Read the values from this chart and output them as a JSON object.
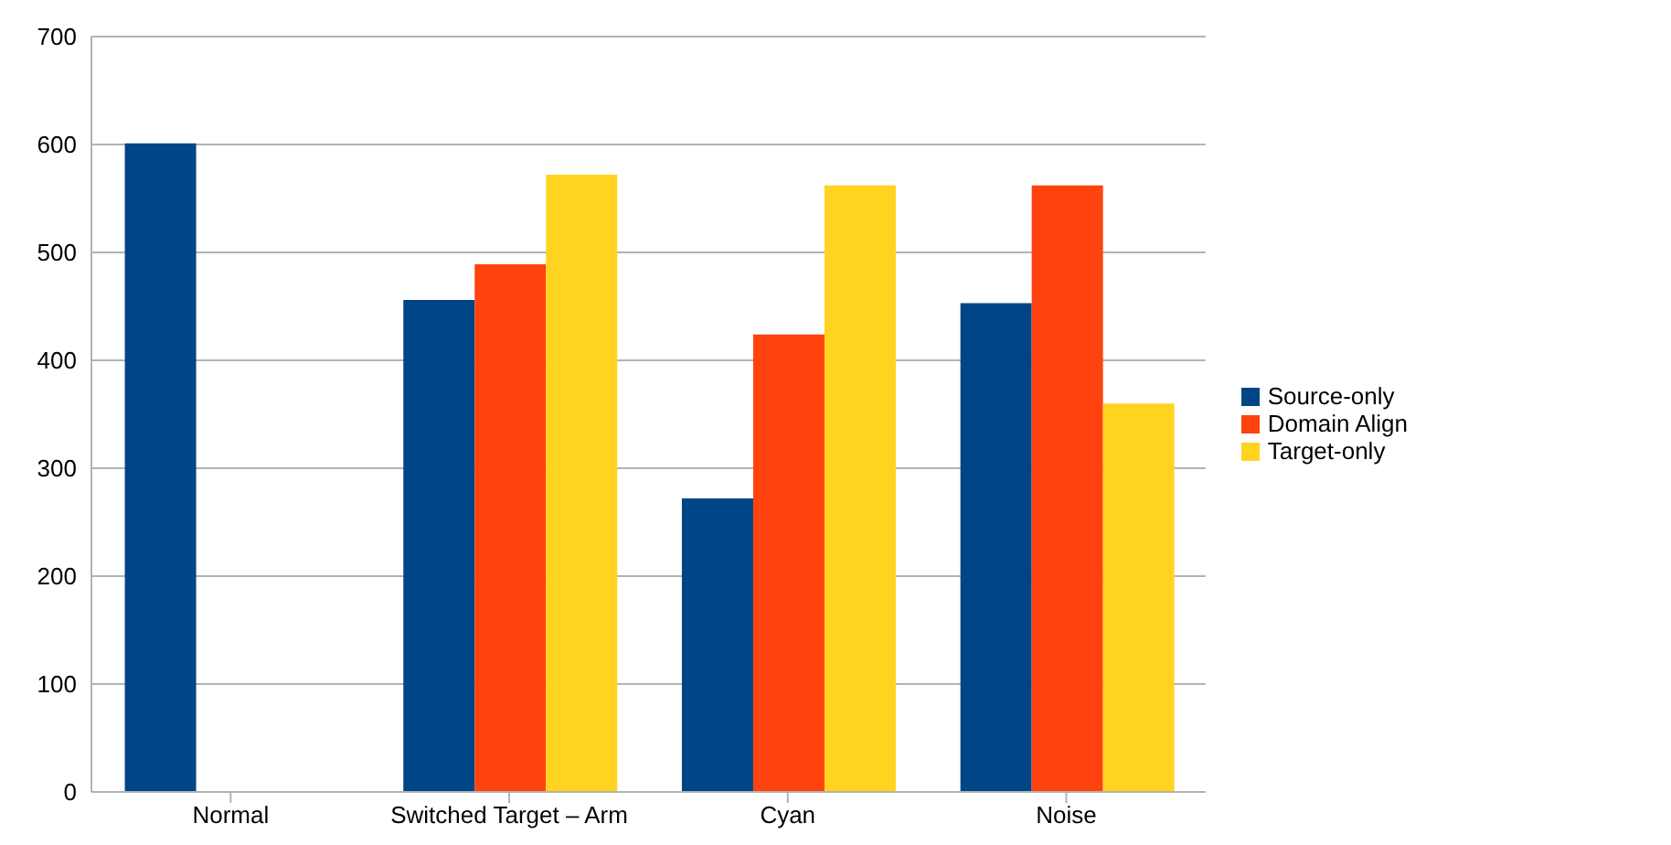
{
  "chart_data": {
    "type": "bar",
    "categories": [
      "Normal",
      "Switched Target – Arm",
      "Cyan",
      "Noise"
    ],
    "series": [
      {
        "name": "Source-only",
        "color": "#004586",
        "values": [
          601,
          456,
          272,
          453
        ]
      },
      {
        "name": "Domain Align",
        "color": "#ff420e",
        "values": [
          null,
          489,
          424,
          562
        ]
      },
      {
        "name": "Target-only",
        "color": "#ffd320",
        "values": [
          null,
          572,
          562,
          360
        ]
      }
    ],
    "ylim": [
      0,
      700
    ],
    "yticks": [
      0,
      100,
      200,
      300,
      400,
      500,
      600,
      700
    ],
    "grid": "y",
    "legend": "right"
  }
}
